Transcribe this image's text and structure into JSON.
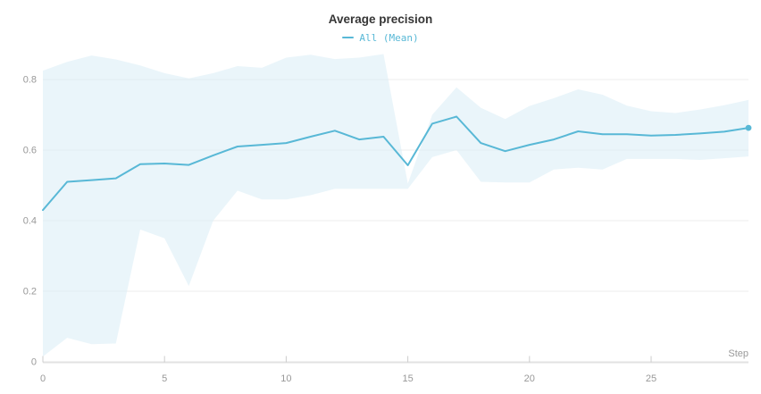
{
  "accent_color": "#58b8d6",
  "chart_data": {
    "type": "line",
    "title": "Average precision",
    "xlabel": "Step",
    "ylabel": "",
    "x": [
      0,
      1,
      2,
      3,
      4,
      5,
      6,
      7,
      8,
      9,
      10,
      11,
      12,
      13,
      14,
      15,
      16,
      17,
      18,
      19,
      20,
      21,
      22,
      23,
      24,
      25,
      26,
      27,
      28,
      29
    ],
    "series": [
      {
        "name": "All (Mean)",
        "color": "#58b8d6",
        "values": [
          0.43,
          0.51,
          0.515,
          0.52,
          0.56,
          0.562,
          0.558,
          0.585,
          0.61,
          0.615,
          0.62,
          0.638,
          0.655,
          0.63,
          0.638,
          0.557,
          0.675,
          0.695,
          0.62,
          0.597,
          0.615,
          0.63,
          0.653,
          0.645,
          0.645,
          0.641,
          0.643,
          0.647,
          0.652,
          0.663
        ]
      }
    ],
    "band": {
      "name": "range-band",
      "fill": "#d8edf5",
      "opacity": 0.55,
      "upper": [
        0.825,
        0.85,
        0.868,
        0.857,
        0.84,
        0.818,
        0.803,
        0.818,
        0.838,
        0.833,
        0.862,
        0.87,
        0.858,
        0.862,
        0.872,
        0.505,
        0.7,
        0.778,
        0.72,
        0.688,
        0.725,
        0.747,
        0.772,
        0.757,
        0.726,
        0.71,
        0.705,
        0.715,
        0.727,
        0.742
      ],
      "lower": [
        0.015,
        0.068,
        0.05,
        0.052,
        0.375,
        0.35,
        0.215,
        0.4,
        0.485,
        0.46,
        0.46,
        0.472,
        0.49,
        0.49,
        0.49,
        0.49,
        0.58,
        0.6,
        0.51,
        0.508,
        0.508,
        0.545,
        0.55,
        0.545,
        0.575,
        0.575,
        0.575,
        0.572,
        0.577,
        0.582
      ]
    },
    "x_ticks": [
      0,
      5,
      10,
      15,
      20,
      25
    ],
    "y_ticks": [
      0,
      0.2,
      0.4,
      0.6,
      0.8
    ],
    "xlim": [
      0,
      29
    ],
    "ylim": [
      0,
      0.886
    ],
    "grid": "horizontal",
    "legend_position": "top-center",
    "end_marker": true
  },
  "axis_style": {
    "tick_label_color": "#999999",
    "grid_color": "#ededed",
    "axis_line_color": "#e2e2e2",
    "tick_mark_color": "#cccccc"
  }
}
